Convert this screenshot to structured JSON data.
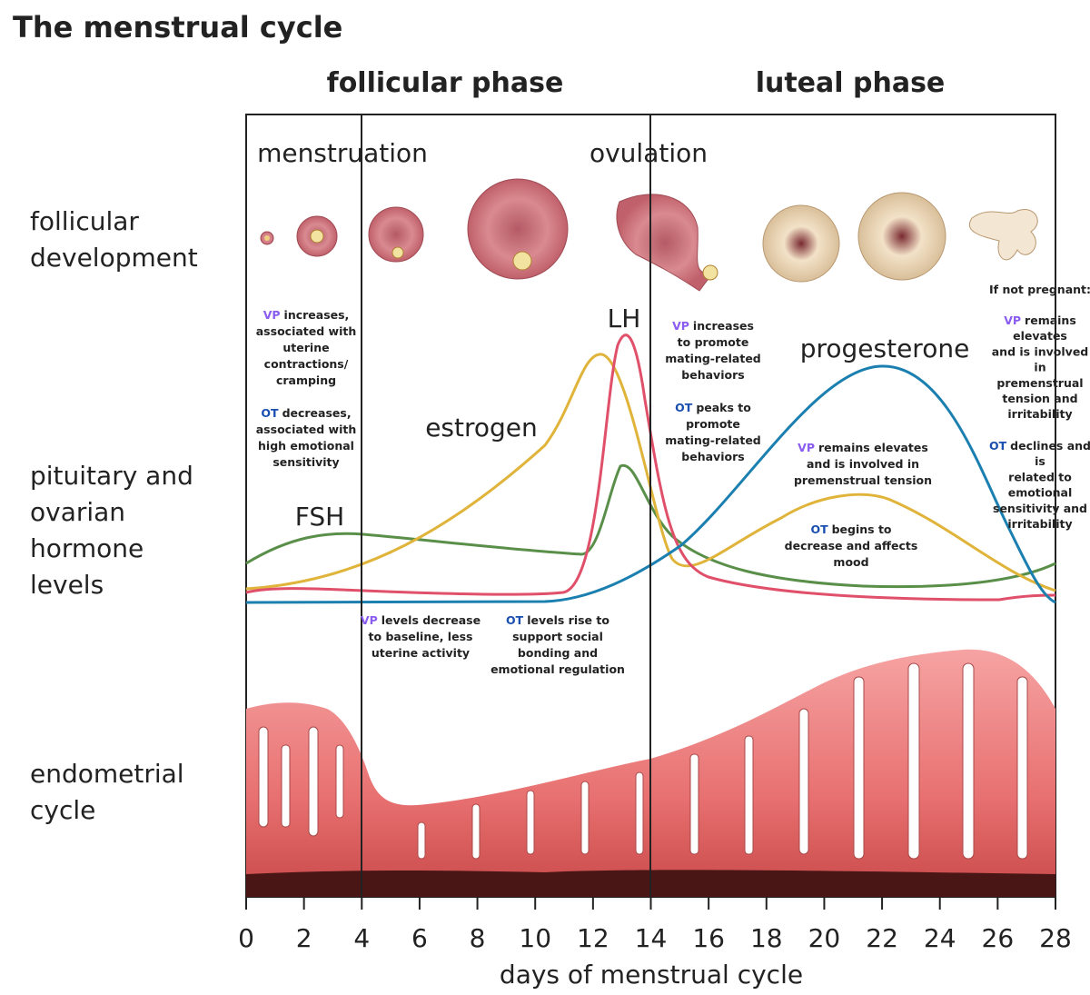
{
  "title": "The menstrual cycle",
  "phases": [
    "follicular phase",
    "luteal phase"
  ],
  "events": [
    "menstruation",
    "ovulation"
  ],
  "row_labels": [
    [
      "follicular",
      "development"
    ],
    [
      "pituitary and",
      "ovarian",
      "hormone",
      "levels"
    ],
    [
      "endometrial",
      "cycle"
    ]
  ],
  "hormone_labels": [
    "LH",
    "estrogen",
    "progesterone",
    "FSH"
  ],
  "note": "If not pregnant:",
  "annotations": [
    {
      "tag": "VP",
      "lines": [
        "increases,",
        "associated with",
        "uterine",
        "contractions/",
        "cramping"
      ]
    },
    {
      "tag": "OT",
      "lines": [
        "decreases,",
        "associated with",
        "high emotional",
        "sensitivity"
      ]
    },
    {
      "tag": "VP",
      "lines": [
        "increases",
        "to promote",
        "mating-related",
        "behaviors"
      ]
    },
    {
      "tag": "OT",
      "lines": [
        "peaks to",
        "promote",
        "mating-related",
        "behaviors"
      ]
    },
    {
      "tag": "VP",
      "lines": [
        "remains",
        "elevates",
        "and is involved",
        "in",
        "premenstrual",
        "tension and",
        "irritability"
      ]
    },
    {
      "tag": "OT",
      "lines": [
        "declines and",
        "is",
        "related to",
        "emotional",
        "sensitivity and",
        "irritability"
      ]
    },
    {
      "tag": "VP",
      "lines": [
        "remains elevates",
        "and is involved in",
        "premenstrual tension"
      ]
    },
    {
      "tag": "OT",
      "lines": [
        "begins to",
        "decrease and affects",
        "mood"
      ]
    },
    {
      "tag": "VP",
      "lines": [
        "levels decrease",
        "to baseline, less",
        "uterine activity"
      ]
    },
    {
      "tag": "OT",
      "lines": [
        "levels rise to",
        "support social",
        "bonding and",
        "emotional regulation"
      ]
    }
  ],
  "x_axis": {
    "label": "days of menstrual cycle",
    "xlim": [
      0,
      28
    ],
    "ticks": [
      0,
      2,
      4,
      6,
      8,
      10,
      12,
      14,
      16,
      18,
      20,
      22,
      24,
      26,
      28
    ]
  }
}
